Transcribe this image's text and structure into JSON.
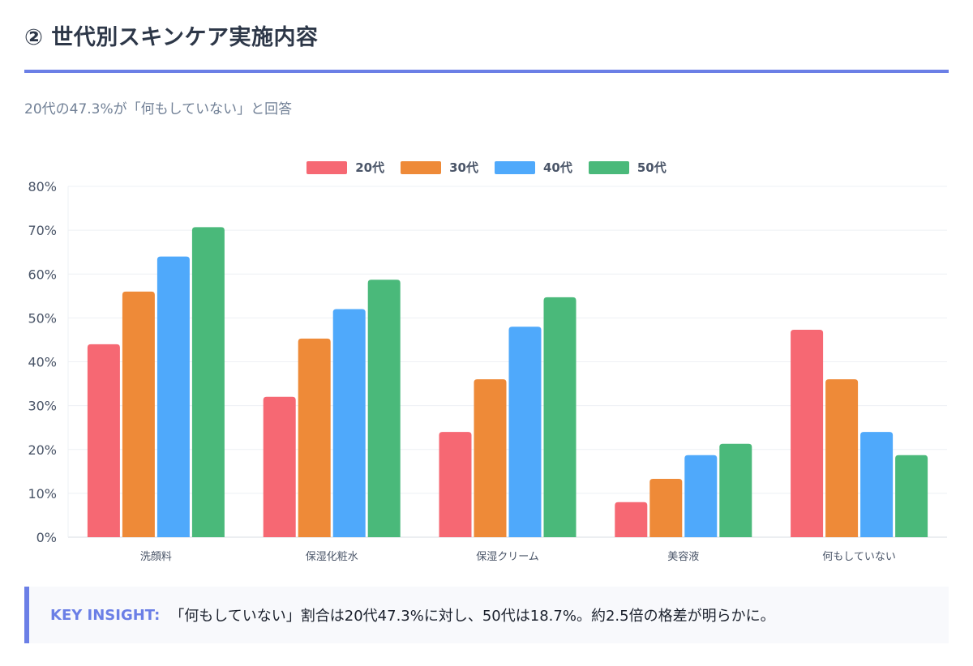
{
  "header": {
    "title": "② 世代別スキンケア実施内容",
    "subtitle": "20代の47.3%が「何もしていない」と回答"
  },
  "chart_data": {
    "type": "bar",
    "categories": [
      "洗顔料",
      "保湿化粧水",
      "保湿クリーム",
      "美容液",
      "何もしていない"
    ],
    "series": [
      {
        "name": "20代",
        "color": "#f66873",
        "values": [
          44,
          32,
          24,
          8,
          47.3
        ]
      },
      {
        "name": "30代",
        "color": "#ee8a38",
        "values": [
          56,
          45.3,
          36,
          13.3,
          36
        ]
      },
      {
        "name": "40代",
        "color": "#4fa9fb",
        "values": [
          64,
          52,
          48,
          18.7,
          24
        ]
      },
      {
        "name": "50代",
        "color": "#4ab97a",
        "values": [
          70.7,
          58.7,
          54.7,
          21.3,
          18.7
        ]
      }
    ],
    "ylim": [
      0,
      80
    ],
    "yticks": [
      "0%",
      "10%",
      "20%",
      "30%",
      "40%",
      "50%",
      "60%",
      "70%",
      "80%"
    ],
    "legend": "top-center",
    "grid": true
  },
  "insight": {
    "label": "KEY INSIGHT:",
    "text": "「何もしていない」割合は20代47.3%に対し、50代は18.7%。約2.5倍の格差が明らかに。"
  }
}
